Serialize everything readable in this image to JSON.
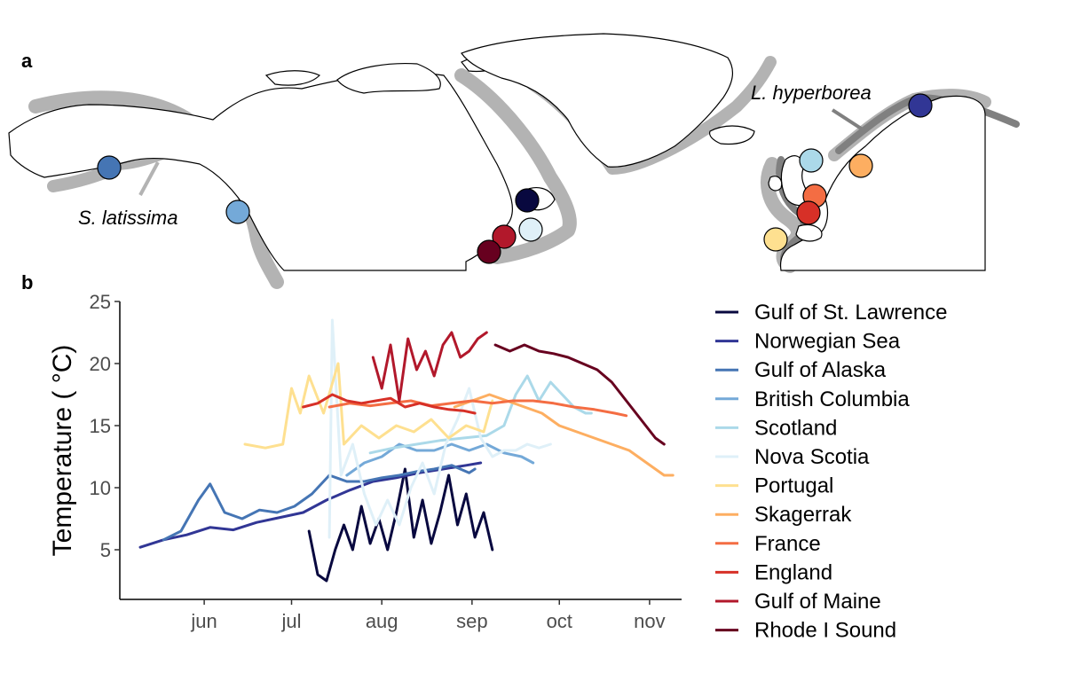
{
  "panels": {
    "a": "a",
    "b": "b"
  },
  "map": {
    "species": [
      {
        "name": "S. latissima",
        "band_color": "#b3b3b3"
      },
      {
        "name": "L. hyperborea",
        "band_color": "#808080"
      }
    ],
    "sites": [
      {
        "name": "Gulf of Alaska",
        "color": "#4575b4"
      },
      {
        "name": "British Columbia",
        "color": "#74a9d8"
      },
      {
        "name": "Gulf of St. Lawrence",
        "color": "#08083f"
      },
      {
        "name": "Nova Scotia",
        "color": "#dff0f8"
      },
      {
        "name": "Gulf of Maine",
        "color": "#b2182b"
      },
      {
        "name": "Rhode I Sound",
        "color": "#67001f"
      },
      {
        "name": "Norwegian Sea",
        "color": "#313695"
      },
      {
        "name": "Scotland",
        "color": "#abd9e9"
      },
      {
        "name": "Skagerrak",
        "color": "#fdae61"
      },
      {
        "name": "France",
        "color": "#f46d43"
      },
      {
        "name": "England",
        "color": "#d73027"
      },
      {
        "name": "Portugal",
        "color": "#fee090"
      }
    ]
  },
  "chart_data": {
    "type": "line",
    "title": "",
    "xlabel": "",
    "ylabel": "Temperature ( °C)",
    "x_unit": "date",
    "xlim": [
      "2016-05-03",
      "2016-11-12"
    ],
    "ylim": [
      1,
      25
    ],
    "x_ticks": [
      {
        "label": "jun",
        "date": "2016-06-01"
      },
      {
        "label": "jul",
        "date": "2016-07-01"
      },
      {
        "label": "aug",
        "date": "2016-08-01"
      },
      {
        "label": "sep",
        "date": "2016-09-01"
      },
      {
        "label": "oct",
        "date": "2016-10-01"
      },
      {
        "label": "nov",
        "date": "2016-11-01"
      }
    ],
    "y_ticks": [
      5,
      10,
      15,
      20,
      25
    ],
    "grid": false,
    "legend_position": "right",
    "series": [
      {
        "name": "Gulf of St. Lawrence",
        "color": "#08083f",
        "points": [
          [
            "2016-07-07",
            6.5
          ],
          [
            "2016-07-10",
            3.0
          ],
          [
            "2016-07-13",
            2.5
          ],
          [
            "2016-07-16",
            5.0
          ],
          [
            "2016-07-19",
            7.0
          ],
          [
            "2016-07-22",
            5.0
          ],
          [
            "2016-07-25",
            8.5
          ],
          [
            "2016-07-28",
            5.5
          ],
          [
            "2016-07-31",
            7.5
          ],
          [
            "2016-08-03",
            5.0
          ],
          [
            "2016-08-06",
            8.0
          ],
          [
            "2016-08-09",
            11.5
          ],
          [
            "2016-08-12",
            6.0
          ],
          [
            "2016-08-15",
            9.0
          ],
          [
            "2016-08-18",
            5.5
          ],
          [
            "2016-08-21",
            8.0
          ],
          [
            "2016-08-24",
            11.0
          ],
          [
            "2016-08-27",
            7.0
          ],
          [
            "2016-08-30",
            9.5
          ],
          [
            "2016-09-02",
            6.0
          ],
          [
            "2016-09-05",
            8.0
          ],
          [
            "2016-09-08",
            5.0
          ]
        ]
      },
      {
        "name": "Norwegian Sea",
        "color": "#313695",
        "points": [
          [
            "2016-05-10",
            5.2
          ],
          [
            "2016-05-18",
            5.8
          ],
          [
            "2016-05-26",
            6.2
          ],
          [
            "2016-06-03",
            6.8
          ],
          [
            "2016-06-11",
            6.6
          ],
          [
            "2016-06-19",
            7.2
          ],
          [
            "2016-06-27",
            7.6
          ],
          [
            "2016-07-05",
            8.0
          ],
          [
            "2016-07-13",
            9.0
          ],
          [
            "2016-07-21",
            9.8
          ],
          [
            "2016-07-29",
            10.5
          ],
          [
            "2016-08-06",
            10.8
          ],
          [
            "2016-08-14",
            11.2
          ],
          [
            "2016-08-22",
            11.5
          ],
          [
            "2016-08-30",
            11.8
          ],
          [
            "2016-09-04",
            12.0
          ]
        ]
      },
      {
        "name": "Gulf of Alaska",
        "color": "#4575b4",
        "points": [
          [
            "2016-05-18",
            5.8
          ],
          [
            "2016-05-24",
            6.5
          ],
          [
            "2016-05-30",
            9.0
          ],
          [
            "2016-06-03",
            10.3
          ],
          [
            "2016-06-08",
            8.0
          ],
          [
            "2016-06-14",
            7.5
          ],
          [
            "2016-06-20",
            8.2
          ],
          [
            "2016-06-26",
            8.0
          ],
          [
            "2016-07-02",
            8.5
          ],
          [
            "2016-07-08",
            9.5
          ],
          [
            "2016-07-14",
            11.0
          ],
          [
            "2016-07-20",
            10.5
          ],
          [
            "2016-07-26",
            10.5
          ],
          [
            "2016-08-01",
            10.8
          ],
          [
            "2016-08-07",
            11.0
          ],
          [
            "2016-08-13",
            11.3
          ],
          [
            "2016-08-19",
            11.5
          ],
          [
            "2016-08-25",
            11.8
          ],
          [
            "2016-08-31",
            11.2
          ],
          [
            "2016-09-02",
            11.5
          ]
        ]
      },
      {
        "name": "British Columbia",
        "color": "#74a9d8",
        "points": [
          [
            "2016-07-20",
            11.0
          ],
          [
            "2016-07-26",
            12.0
          ],
          [
            "2016-08-01",
            12.5
          ],
          [
            "2016-08-07",
            13.5
          ],
          [
            "2016-08-13",
            13.0
          ],
          [
            "2016-08-19",
            13.0
          ],
          [
            "2016-08-25",
            13.5
          ],
          [
            "2016-08-31",
            13.0
          ],
          [
            "2016-09-06",
            13.5
          ],
          [
            "2016-09-12",
            12.8
          ],
          [
            "2016-09-18",
            12.5
          ],
          [
            "2016-09-22",
            12.0
          ]
        ]
      },
      {
        "name": "Scotland",
        "color": "#abd9e9",
        "points": [
          [
            "2016-07-28",
            12.8
          ],
          [
            "2016-08-05",
            13.2
          ],
          [
            "2016-08-13",
            13.5
          ],
          [
            "2016-08-21",
            13.8
          ],
          [
            "2016-08-29",
            14.0
          ],
          [
            "2016-09-06",
            14.2
          ],
          [
            "2016-09-12",
            15.0
          ],
          [
            "2016-09-16",
            17.5
          ],
          [
            "2016-09-20",
            19.0
          ],
          [
            "2016-09-24",
            17.0
          ],
          [
            "2016-09-28",
            18.5
          ],
          [
            "2016-10-02",
            17.5
          ],
          [
            "2016-10-06",
            16.5
          ],
          [
            "2016-10-10",
            16.0
          ],
          [
            "2016-10-12",
            16.0
          ]
        ]
      },
      {
        "name": "Nova Scotia",
        "color": "#dff0f8",
        "points": [
          [
            "2016-07-14",
            6.0
          ],
          [
            "2016-07-15",
            23.5
          ],
          [
            "2016-07-18",
            11.0
          ],
          [
            "2016-07-22",
            13.5
          ],
          [
            "2016-07-26",
            9.5
          ],
          [
            "2016-07-30",
            7.0
          ],
          [
            "2016-08-03",
            9.0
          ],
          [
            "2016-08-07",
            7.0
          ],
          [
            "2016-08-11",
            10.0
          ],
          [
            "2016-08-15",
            12.0
          ],
          [
            "2016-08-19",
            9.5
          ],
          [
            "2016-08-23",
            13.5
          ],
          [
            "2016-08-27",
            15.5
          ],
          [
            "2016-08-31",
            18.0
          ],
          [
            "2016-09-04",
            14.0
          ],
          [
            "2016-09-08",
            12.5
          ],
          [
            "2016-09-12",
            13.0
          ],
          [
            "2016-09-16",
            13.0
          ],
          [
            "2016-09-20",
            13.5
          ],
          [
            "2016-09-24",
            13.2
          ],
          [
            "2016-09-28",
            13.5
          ]
        ]
      },
      {
        "name": "Portugal",
        "color": "#fee090",
        "points": [
          [
            "2016-06-15",
            13.5
          ],
          [
            "2016-06-22",
            13.2
          ],
          [
            "2016-06-28",
            13.5
          ],
          [
            "2016-07-01",
            18.0
          ],
          [
            "2016-07-04",
            16.0
          ],
          [
            "2016-07-07",
            19.0
          ],
          [
            "2016-07-12",
            16.0
          ],
          [
            "2016-07-17",
            20.0
          ],
          [
            "2016-07-19",
            13.5
          ],
          [
            "2016-07-25",
            15.0
          ],
          [
            "2016-07-31",
            14.0
          ],
          [
            "2016-08-06",
            15.0
          ],
          [
            "2016-08-12",
            14.5
          ],
          [
            "2016-08-18",
            15.5
          ],
          [
            "2016-08-24",
            14.0
          ],
          [
            "2016-08-30",
            15.0
          ],
          [
            "2016-09-05",
            14.5
          ],
          [
            "2016-09-08",
            17.0
          ]
        ]
      },
      {
        "name": "Skagerrak",
        "color": "#fdae61",
        "points": [
          [
            "2016-08-26",
            16.5
          ],
          [
            "2016-09-01",
            17.0
          ],
          [
            "2016-09-07",
            17.5
          ],
          [
            "2016-09-13",
            17.0
          ],
          [
            "2016-09-19",
            16.5
          ],
          [
            "2016-09-25",
            16.0
          ],
          [
            "2016-10-01",
            15.0
          ],
          [
            "2016-10-07",
            14.5
          ],
          [
            "2016-10-13",
            14.0
          ],
          [
            "2016-10-19",
            13.5
          ],
          [
            "2016-10-25",
            13.0
          ],
          [
            "2016-10-31",
            12.0
          ],
          [
            "2016-11-06",
            11.0
          ],
          [
            "2016-11-09",
            11.0
          ]
        ]
      },
      {
        "name": "France",
        "color": "#f46d43",
        "points": [
          [
            "2016-07-14",
            16.5
          ],
          [
            "2016-07-21",
            16.8
          ],
          [
            "2016-07-28",
            16.6
          ],
          [
            "2016-08-04",
            16.8
          ],
          [
            "2016-08-11",
            17.0
          ],
          [
            "2016-08-18",
            16.6
          ],
          [
            "2016-08-25",
            16.8
          ],
          [
            "2016-09-01",
            17.0
          ],
          [
            "2016-09-08",
            16.8
          ],
          [
            "2016-09-15",
            17.0
          ],
          [
            "2016-09-22",
            17.0
          ],
          [
            "2016-09-29",
            16.8
          ],
          [
            "2016-10-06",
            16.5
          ],
          [
            "2016-10-13",
            16.3
          ],
          [
            "2016-10-20",
            16.0
          ],
          [
            "2016-10-24",
            15.8
          ]
        ]
      },
      {
        "name": "England",
        "color": "#d73027",
        "points": [
          [
            "2016-07-05",
            16.5
          ],
          [
            "2016-07-10",
            16.8
          ],
          [
            "2016-07-15",
            17.5
          ],
          [
            "2016-07-20",
            17.0
          ],
          [
            "2016-07-25",
            16.8
          ],
          [
            "2016-07-30",
            17.0
          ],
          [
            "2016-08-04",
            17.2
          ],
          [
            "2016-08-09",
            16.5
          ],
          [
            "2016-08-14",
            16.8
          ],
          [
            "2016-08-19",
            16.5
          ],
          [
            "2016-08-24",
            16.3
          ],
          [
            "2016-08-29",
            16.2
          ],
          [
            "2016-09-02",
            16.0
          ]
        ]
      },
      {
        "name": "Gulf of Maine",
        "color": "#b2182b",
        "points": [
          [
            "2016-07-29",
            20.5
          ],
          [
            "2016-08-01",
            18.0
          ],
          [
            "2016-08-04",
            21.5
          ],
          [
            "2016-08-07",
            17.0
          ],
          [
            "2016-08-10",
            22.0
          ],
          [
            "2016-08-13",
            19.5
          ],
          [
            "2016-08-16",
            21.0
          ],
          [
            "2016-08-19",
            19.0
          ],
          [
            "2016-08-22",
            21.5
          ],
          [
            "2016-08-25",
            22.5
          ],
          [
            "2016-08-28",
            20.5
          ],
          [
            "2016-08-31",
            21.0
          ],
          [
            "2016-09-03",
            22.0
          ],
          [
            "2016-09-06",
            22.5
          ]
        ]
      },
      {
        "name": "Rhode I Sound",
        "color": "#67001f",
        "points": [
          [
            "2016-09-09",
            21.5
          ],
          [
            "2016-09-14",
            21.0
          ],
          [
            "2016-09-19",
            21.5
          ],
          [
            "2016-09-24",
            21.0
          ],
          [
            "2016-09-29",
            20.8
          ],
          [
            "2016-10-04",
            20.5
          ],
          [
            "2016-10-09",
            20.0
          ],
          [
            "2016-10-14",
            19.5
          ],
          [
            "2016-10-19",
            18.5
          ],
          [
            "2016-10-24",
            17.0
          ],
          [
            "2016-10-29",
            15.5
          ],
          [
            "2016-11-03",
            14.0
          ],
          [
            "2016-11-06",
            13.5
          ]
        ]
      }
    ]
  }
}
